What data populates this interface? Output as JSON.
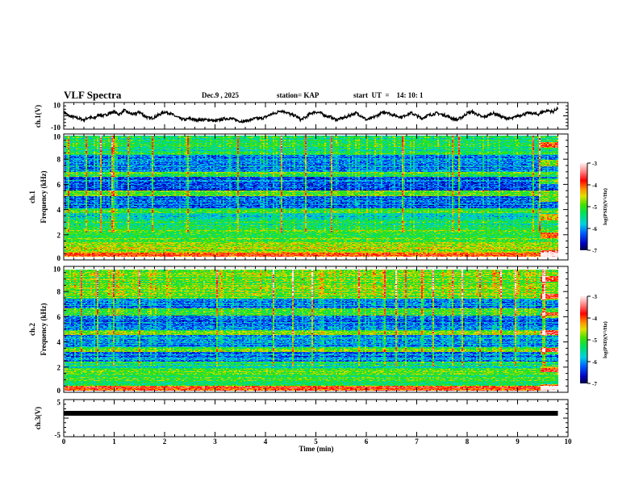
{
  "header": {
    "title": "VLF Spectra",
    "date": "Dec.9  , 2025",
    "station": "station= KAP",
    "start": "start  UT  =    14: 10: 1"
  },
  "chart_data": [
    {
      "type": "line",
      "name": "ch1-waveform",
      "ylabel": "ch.1(V)",
      "ylim": [
        -10,
        10
      ],
      "yticks": [
        "10",
        "-10"
      ],
      "xlim": [
        0,
        10
      ],
      "description": "Noisy waveform fluctuating roughly between -6 V and +6 V over ~9.8 minutes",
      "samples": [
        [
          0.0,
          3
        ],
        [
          0.1,
          0
        ],
        [
          0.2,
          -1
        ],
        [
          0.3,
          -2
        ],
        [
          0.4,
          -3
        ],
        [
          0.5,
          -1
        ],
        [
          0.6,
          -2
        ],
        [
          0.7,
          1
        ],
        [
          0.8,
          0
        ],
        [
          0.9,
          2
        ],
        [
          1.0,
          3
        ],
        [
          1.1,
          1
        ],
        [
          1.2,
          4
        ],
        [
          1.3,
          2
        ],
        [
          1.4,
          1
        ],
        [
          1.5,
          3
        ],
        [
          1.6,
          0
        ],
        [
          1.7,
          -2
        ],
        [
          1.8,
          -1
        ],
        [
          1.9,
          1
        ],
        [
          2.0,
          3
        ],
        [
          2.1,
          2
        ],
        [
          2.2,
          0
        ],
        [
          2.3,
          -2
        ],
        [
          2.4,
          -3
        ],
        [
          2.5,
          -2
        ],
        [
          2.6,
          -3
        ],
        [
          2.7,
          -3
        ],
        [
          2.8,
          -3
        ],
        [
          2.9,
          -3
        ],
        [
          3.0,
          -4
        ],
        [
          3.1,
          -3
        ],
        [
          3.2,
          -2
        ],
        [
          3.3,
          -2
        ],
        [
          3.4,
          -3
        ],
        [
          3.5,
          -4
        ],
        [
          3.6,
          -4
        ],
        [
          3.7,
          -3
        ],
        [
          3.8,
          -2
        ],
        [
          3.9,
          -2
        ],
        [
          4.0,
          -1
        ],
        [
          4.1,
          1
        ],
        [
          4.2,
          2
        ],
        [
          4.3,
          4
        ],
        [
          4.4,
          3
        ],
        [
          4.5,
          1
        ],
        [
          4.6,
          0
        ],
        [
          4.7,
          -3
        ],
        [
          4.8,
          -1
        ],
        [
          4.9,
          2
        ],
        [
          5.0,
          3
        ],
        [
          5.1,
          2
        ],
        [
          5.2,
          0
        ],
        [
          5.3,
          -1
        ],
        [
          5.4,
          -3
        ],
        [
          5.5,
          -2
        ],
        [
          5.6,
          -1
        ],
        [
          5.7,
          1
        ],
        [
          5.8,
          2
        ],
        [
          5.9,
          0
        ],
        [
          6.0,
          -3
        ],
        [
          6.1,
          -2
        ],
        [
          6.2,
          0
        ],
        [
          6.3,
          2
        ],
        [
          6.4,
          3
        ],
        [
          6.5,
          1
        ],
        [
          6.6,
          0
        ],
        [
          6.7,
          -1
        ],
        [
          6.8,
          1
        ],
        [
          6.9,
          2
        ],
        [
          7.0,
          0
        ],
        [
          7.1,
          -2
        ],
        [
          7.2,
          0
        ],
        [
          7.3,
          1
        ],
        [
          7.4,
          2
        ],
        [
          7.5,
          1
        ],
        [
          7.6,
          0
        ],
        [
          7.7,
          -2
        ],
        [
          7.8,
          -3
        ],
        [
          7.9,
          -1
        ],
        [
          8.0,
          2
        ],
        [
          8.1,
          3
        ],
        [
          8.2,
          1
        ],
        [
          8.3,
          -1
        ],
        [
          8.4,
          0
        ],
        [
          8.5,
          2
        ],
        [
          8.6,
          1
        ],
        [
          8.7,
          -1
        ],
        [
          8.8,
          -2
        ],
        [
          8.9,
          -2
        ],
        [
          9.0,
          0
        ],
        [
          9.1,
          1
        ],
        [
          9.2,
          2
        ],
        [
          9.3,
          2
        ],
        [
          9.4,
          1
        ],
        [
          9.5,
          3
        ],
        [
          9.6,
          4
        ],
        [
          9.7,
          3
        ],
        [
          9.8,
          6
        ]
      ]
    },
    {
      "type": "heatmap",
      "name": "ch1-spectrogram",
      "ylabel_top": "ch.1",
      "ylabel": "Frequency  (kHz)",
      "ylim": [
        0,
        10
      ],
      "yticks": [
        "0",
        "2",
        "4",
        "6",
        "8",
        "10"
      ],
      "xlim": [
        0,
        10
      ],
      "data_xmax": 9.8,
      "colorbar": {
        "label": "log(PSD)(V²/Hz)",
        "range": [
          -7,
          -3
        ],
        "ticks": [
          "-3",
          "-4",
          "-5",
          "-6",
          "-7"
        ]
      },
      "bands_khz": [
        {
          "f": [
            0.0,
            0.3
          ],
          "level": -3.8
        },
        {
          "f": [
            0.3,
            1.2
          ],
          "level": -4.6
        },
        {
          "f": [
            1.2,
            2.2
          ],
          "level": -5.0
        },
        {
          "f": [
            2.2,
            3.0
          ],
          "level": -5.4
        },
        {
          "f": [
            3.0,
            3.6
          ],
          "level": -5.8
        },
        {
          "f": [
            3.6,
            4.0
          ],
          "level": -5.2
        },
        {
          "f": [
            4.0,
            5.0
          ],
          "level": -6.2
        },
        {
          "f": [
            5.0,
            5.5
          ],
          "level": -5.0
        },
        {
          "f": [
            5.5,
            6.6
          ],
          "level": -6.3
        },
        {
          "f": [
            6.6,
            7.0
          ],
          "level": -5.2
        },
        {
          "f": [
            7.0,
            8.4
          ],
          "level": -6.1
        },
        {
          "f": [
            8.4,
            10.0
          ],
          "level": -5.4
        }
      ]
    },
    {
      "type": "heatmap",
      "name": "ch2-spectrogram",
      "ylabel_top": "ch.2",
      "ylabel": "Frequency  (kHz)",
      "ylim": [
        0,
        10
      ],
      "yticks": [
        "0",
        "2",
        "4",
        "6",
        "8",
        "10"
      ],
      "xlim": [
        0,
        10
      ],
      "data_xmax": 9.8,
      "colorbar": {
        "label": "log(PSD)(V²/Hz)",
        "range": [
          -7,
          -3
        ],
        "ticks": [
          "-3",
          "-4",
          "-5",
          "-6",
          "-7"
        ]
      },
      "bands_khz": [
        {
          "f": [
            0.0,
            0.4
          ],
          "level": -3.9
        },
        {
          "f": [
            0.4,
            1.8
          ],
          "level": -5.1
        },
        {
          "f": [
            1.8,
            2.4
          ],
          "level": -5.4
        },
        {
          "f": [
            2.4,
            3.2
          ],
          "level": -6.2
        },
        {
          "f": [
            3.2,
            3.6
          ],
          "level": -5.0
        },
        {
          "f": [
            3.6,
            4.6
          ],
          "level": -6.1
        },
        {
          "f": [
            4.6,
            5.0
          ],
          "level": -5.0
        },
        {
          "f": [
            5.0,
            6.2
          ],
          "level": -6.2
        },
        {
          "f": [
            6.2,
            6.8
          ],
          "level": -5.1
        },
        {
          "f": [
            6.8,
            7.6
          ],
          "level": -6.1
        },
        {
          "f": [
            7.6,
            10.0
          ],
          "level": -5.0
        }
      ]
    },
    {
      "type": "line",
      "name": "ch3-waveform",
      "ylabel": "ch.3(V)",
      "ylim": [
        -5,
        5
      ],
      "yticks": [
        "5",
        "-5"
      ],
      "xlim": [
        0,
        10
      ],
      "xlabel": "Time  (min)",
      "xticks": [
        "0",
        "1",
        "2",
        "3",
        "4",
        "5",
        "6",
        "7",
        "8",
        "9",
        "10"
      ],
      "description": "Flat thick signal near +1 V",
      "samples": [
        [
          0,
          1.3
        ],
        [
          9.8,
          1.3
        ]
      ]
    }
  ]
}
